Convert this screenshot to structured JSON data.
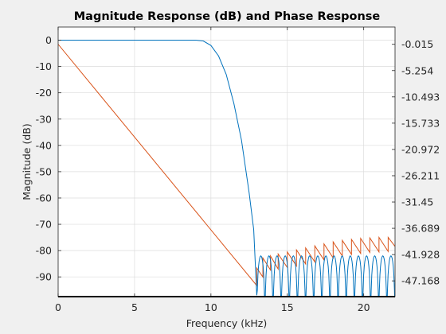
{
  "chart_data": {
    "type": "line",
    "title": "Magnitude Response (dB) and Phase Response",
    "xlabel": "Frequency (kHz)",
    "ylabel": "Magnitude (dB)",
    "ylabel_right": "",
    "xlim": [
      0,
      22.05
    ],
    "ylim": [
      -97.5,
      5
    ],
    "ylim_right": [
      -50.31,
      3.43
    ],
    "grid": true,
    "legend": "none",
    "x_ticks": [
      "0",
      "5",
      "10",
      "15",
      "20"
    ],
    "x_tick_values": [
      0,
      5,
      10,
      15,
      20
    ],
    "y_ticks": [
      "0",
      "-10",
      "-20",
      "-30",
      "-40",
      "-50",
      "-60",
      "-70",
      "-80",
      "-90"
    ],
    "y_tick_values": [
      0,
      -10,
      -20,
      -30,
      -40,
      -50,
      -60,
      -70,
      -80,
      -90
    ],
    "y_right_ticks": [
      "-0.015",
      "-5.254",
      "-10.493",
      "-15.733",
      "-20.972",
      "-26.211",
      "-31.45",
      "-36.689",
      "-41.928",
      "-47.168"
    ],
    "y_right_tick_values": [
      -0.015,
      -5.254,
      -10.493,
      -15.733,
      -20.972,
      -26.211,
      -31.45,
      -36.689,
      -41.928,
      -47.168
    ],
    "series": [
      {
        "axis": "left",
        "color": "#0072BD",
        "passband_edge_khz": 9.5,
        "stopband_edge_khz": 13.0,
        "stopband_ripple_peak_db": -82,
        "lobe_count": 17,
        "x": [
          0,
          9.0,
          9.5,
          10.0,
          10.5,
          11.0,
          11.5,
          12.0,
          12.5,
          12.8,
          13.0
        ],
        "y": [
          0,
          0,
          -0.3,
          -2,
          -6,
          -13,
          -24,
          -38,
          -58,
          -72,
          -97
        ]
      },
      {
        "axis": "right",
        "color": "#D95319",
        "x": [
          0,
          13.0,
          13.0,
          13.4,
          13.4,
          13.9,
          13.9,
          14.4,
          14.4,
          15.0,
          15.0,
          15.6,
          15.6,
          16.2,
          16.2,
          16.8,
          16.8,
          17.4,
          17.4,
          18.0,
          18.0,
          18.6,
          18.6,
          19.2,
          19.2,
          19.8,
          19.8,
          20.4,
          20.4,
          21.0,
          21.0,
          21.6,
          21.6,
          22.05
        ],
        "y": [
          0,
          -48.1,
          -44.6,
          -46.4,
          -42.6,
          -45.0,
          -42.2,
          -44.8,
          -41.8,
          -44.5,
          -41.4,
          -44.2,
          -41.0,
          -43.8,
          -40.6,
          -43.4,
          -40.2,
          -43.0,
          -39.8,
          -42.6,
          -39.4,
          -42.2,
          -39.1,
          -41.9,
          -38.9,
          -41.7,
          -38.7,
          -41.5,
          -38.6,
          -41.4,
          -38.5,
          -41.3,
          -38.5,
          -40.3
        ]
      }
    ]
  }
}
